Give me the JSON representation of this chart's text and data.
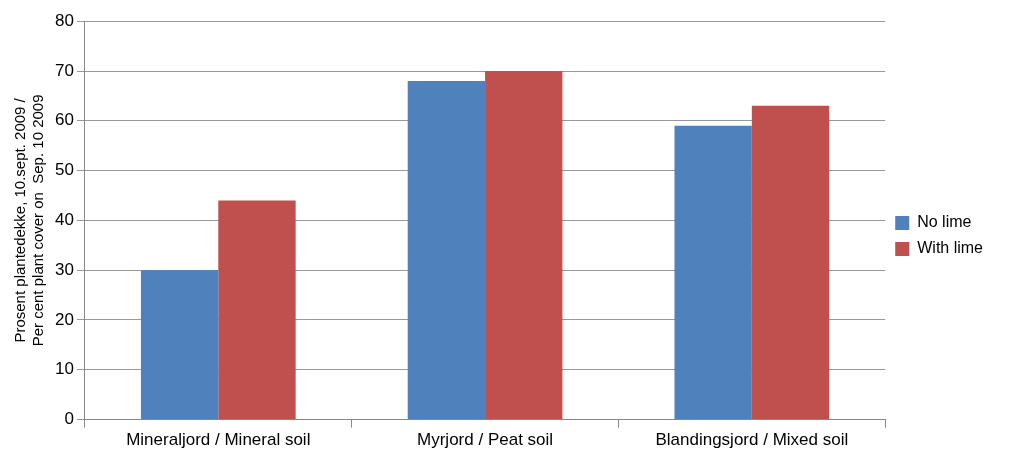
{
  "chart_data": {
    "type": "bar",
    "ylabel": "Prosent plantedekke, 10.sept. 2009 /\nPer cent plant cover on  Sep. 10 2009",
    "categories": [
      "Mineraljord / Mineral soil",
      "Myrjord / Peat soil",
      "Blandingsjord / Mixed soil"
    ],
    "series": [
      {
        "name": "No lime",
        "color": "#4f81bd",
        "values": [
          30,
          68,
          59
        ]
      },
      {
        "name": "With lime",
        "color": "#c0504d",
        "values": [
          44,
          70,
          63
        ]
      }
    ],
    "ylim": [
      0,
      80
    ],
    "yticks": [
      0,
      10,
      20,
      30,
      40,
      50,
      60,
      70,
      80
    ],
    "grid": "y",
    "legend": "right"
  }
}
